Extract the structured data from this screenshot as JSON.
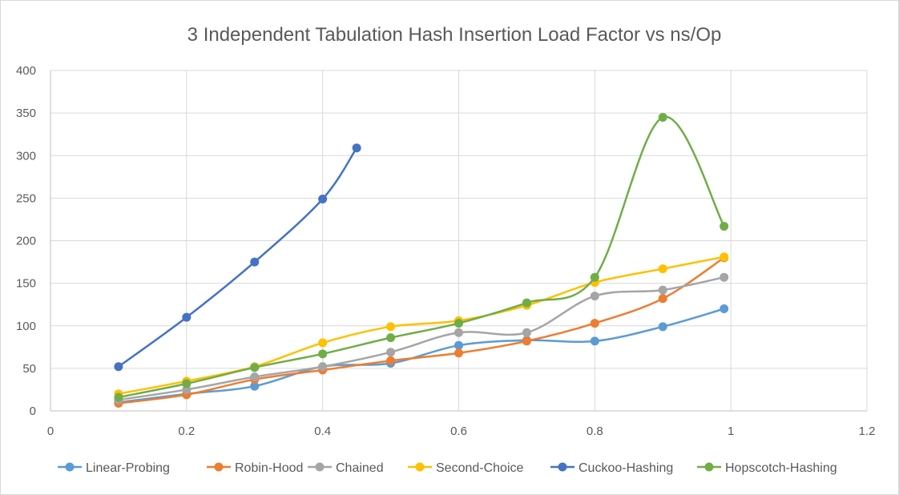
{
  "chart_data": {
    "type": "scatter",
    "title": "3 Independent Tabulation Hash Insertion Load Factor vs ns/Op",
    "xlabel": "",
    "ylabel": "",
    "xlim": [
      0,
      1.2
    ],
    "ylim": [
      0,
      400
    ],
    "x_ticks": [
      "0",
      "0.2",
      "0.4",
      "0.6",
      "0.8",
      "1",
      "1.2"
    ],
    "y_ticks": [
      "0",
      "50",
      "100",
      "150",
      "200",
      "250",
      "300",
      "350",
      "400"
    ],
    "grid": true,
    "smooth_lines": true,
    "legend_position": "bottom",
    "series": [
      {
        "name": "Linear-Probing",
        "color": "#5b9bd5",
        "x": [
          0.1,
          0.2,
          0.3,
          0.4,
          0.5,
          0.6,
          0.7,
          0.8,
          0.9,
          0.99
        ],
        "y": [
          10,
          20,
          29,
          52,
          56,
          77,
          83,
          82,
          99,
          120
        ]
      },
      {
        "name": "Robin-Hood",
        "color": "#ed7d31",
        "x": [
          0.1,
          0.2,
          0.3,
          0.4,
          0.5,
          0.6,
          0.7,
          0.8,
          0.9,
          0.99
        ],
        "y": [
          9,
          19,
          37,
          48,
          59,
          68,
          82,
          103,
          132,
          180
        ]
      },
      {
        "name": "Chained",
        "color": "#a5a5a5",
        "x": [
          0.1,
          0.2,
          0.3,
          0.4,
          0.5,
          0.6,
          0.7,
          0.8,
          0.9,
          0.99
        ],
        "y": [
          13,
          25,
          40,
          52,
          69,
          92,
          92,
          135,
          142,
          157
        ]
      },
      {
        "name": "Second-Choice",
        "color": "#ffc000",
        "x": [
          0.1,
          0.2,
          0.3,
          0.4,
          0.5,
          0.6,
          0.7,
          0.8,
          0.9,
          0.99
        ],
        "y": [
          20,
          35,
          52,
          80,
          99,
          106,
          124,
          151,
          167,
          181
        ]
      },
      {
        "name": "Cuckoo-Hashing",
        "color": "#4472c4",
        "x": [
          0.1,
          0.2,
          0.3,
          0.4,
          0.45
        ],
        "y": [
          52,
          110,
          175,
          249,
          309
        ]
      },
      {
        "name": "Hopscotch-Hashing",
        "color": "#70ad47",
        "x": [
          0.1,
          0.2,
          0.3,
          0.4,
          0.5,
          0.6,
          0.7,
          0.8,
          0.9,
          0.99
        ],
        "y": [
          16,
          32,
          51,
          67,
          86,
          103,
          127,
          157,
          345,
          217
        ]
      }
    ]
  }
}
